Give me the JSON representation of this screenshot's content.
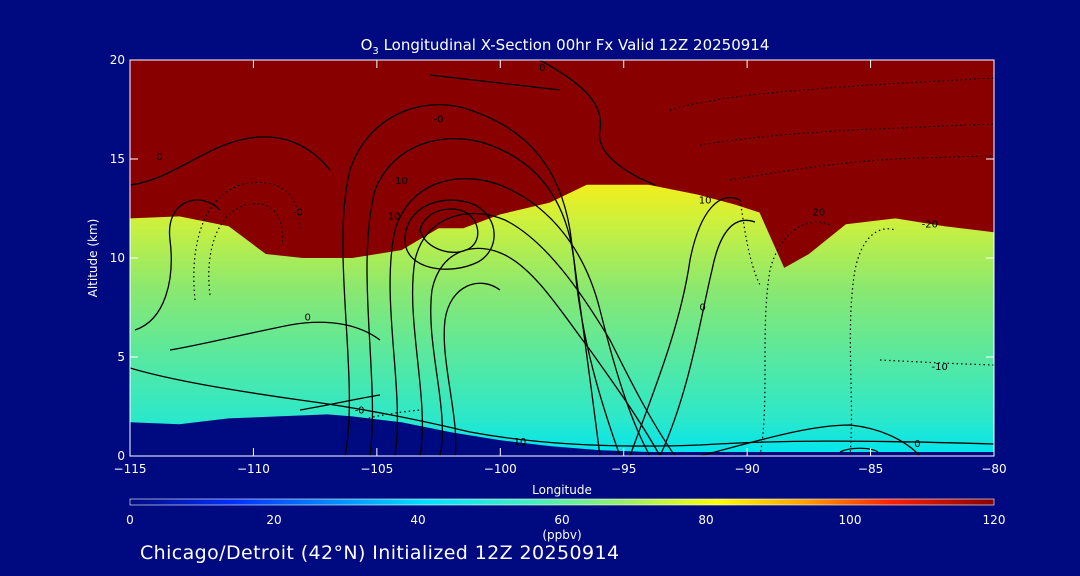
{
  "chart_data": {
    "type": "heatmap",
    "title_prefix": "O",
    "title_sub": "3",
    "title_rest": " Longitudinal X-Section 00hr  Fx Valid 12Z 20250914",
    "xlabel": "Longitude",
    "ylabel": "Altitude (km)",
    "xlim": [
      -115,
      -80
    ],
    "ylim": [
      0,
      20
    ],
    "xticks": [
      -115,
      -110,
      -105,
      -100,
      -95,
      -90,
      -85,
      -80
    ],
    "yticks": [
      0,
      5,
      10,
      15,
      20
    ],
    "colorbar": {
      "ticks": [
        0,
        20,
        40,
        60,
        80,
        100,
        120
      ],
      "label": "(ppbv)",
      "range": [
        0,
        120
      ]
    },
    "tropopause_km": [
      [
        -115,
        12.0
      ],
      [
        -113,
        12.1
      ],
      [
        -111,
        11.6
      ],
      [
        -109.5,
        10.2
      ],
      [
        -108,
        10.0
      ],
      [
        -106,
        10.0
      ],
      [
        -104,
        10.4
      ],
      [
        -102.5,
        11.5
      ],
      [
        -101.5,
        11.5
      ],
      [
        -100,
        12.2
      ],
      [
        -98,
        12.8
      ],
      [
        -96.5,
        13.7
      ],
      [
        -94,
        13.7
      ],
      [
        -92,
        13.2
      ],
      [
        -90.5,
        12.7
      ],
      [
        -89.5,
        12.3
      ],
      [
        -88.5,
        9.5
      ],
      [
        -87.5,
        10.2
      ],
      [
        -86,
        11.7
      ],
      [
        -84,
        12.0
      ],
      [
        -82,
        11.6
      ],
      [
        -80,
        11.3
      ]
    ],
    "terrain_km": [
      [
        -115,
        1.7
      ],
      [
        -113,
        1.6
      ],
      [
        -111,
        1.9
      ],
      [
        -109,
        2.0
      ],
      [
        -107,
        2.1
      ],
      [
        -106,
        2.0
      ],
      [
        -104,
        1.7
      ],
      [
        -102,
        1.2
      ],
      [
        -100,
        0.8
      ],
      [
        -98,
        0.5
      ],
      [
        -96,
        0.3
      ],
      [
        -94,
        0.2
      ],
      [
        -92,
        0.2
      ],
      [
        -88,
        0.2
      ],
      [
        -84,
        0.2
      ],
      [
        -80,
        0.2
      ]
    ],
    "contour_labels": [
      {
        "x": -98.3,
        "y": 19.6,
        "text": "0"
      },
      {
        "x": -102.5,
        "y": 17.0,
        "text": "-0"
      },
      {
        "x": -113.8,
        "y": 15.1,
        "text": "0"
      },
      {
        "x": -104.0,
        "y": 13.9,
        "text": "10"
      },
      {
        "x": -104.3,
        "y": 12.1,
        "text": "10"
      },
      {
        "x": -108.2,
        "y": 12.3,
        "text": "-0"
      },
      {
        "x": -91.7,
        "y": 12.9,
        "text": "10"
      },
      {
        "x": -87.1,
        "y": 12.3,
        "text": "20"
      },
      {
        "x": -82.6,
        "y": 11.7,
        "text": "-20"
      },
      {
        "x": -107.8,
        "y": 7.0,
        "text": "0"
      },
      {
        "x": -91.8,
        "y": 7.5,
        "text": "0"
      },
      {
        "x": -82.2,
        "y": 4.5,
        "text": "-10"
      },
      {
        "x": -105.7,
        "y": 2.3,
        "text": "-0"
      },
      {
        "x": -99.2,
        "y": 0.7,
        "text": "10"
      },
      {
        "x": -83.1,
        "y": 0.6,
        "text": "0"
      }
    ]
  },
  "footer": {
    "text": "Chicago/Detroit (42°N) Initialized 12Z 20250914"
  }
}
